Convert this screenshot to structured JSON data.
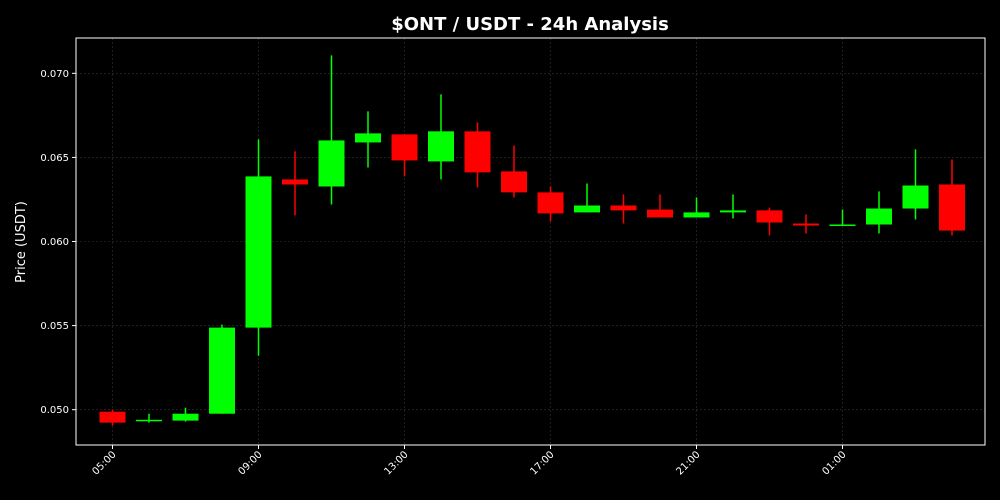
{
  "chart_data": {
    "type": "candlestick",
    "title": "$ONT / USDT - 24h Analysis",
    "ylabel": "Price (USDT)",
    "categories": [
      "05:00",
      null,
      null,
      null,
      "09:00",
      null,
      null,
      null,
      "13:00",
      null,
      null,
      null,
      "17:00",
      null,
      null,
      null,
      "21:00",
      null,
      null,
      null,
      "01:00",
      null,
      null,
      null
    ],
    "open": [
      0.04988,
      0.04935,
      0.04935,
      0.04976,
      0.05488,
      0.06369,
      0.06327,
      0.06589,
      0.06637,
      0.06476,
      0.06655,
      0.06417,
      0.06292,
      0.06173,
      0.06214,
      0.0619,
      0.06143,
      0.06173,
      0.06185,
      0.06107,
      0.06095,
      0.06101,
      0.06196,
      0.06339
    ],
    "high": [
      0.05,
      0.04976,
      0.05012,
      0.05506,
      0.06607,
      0.06536,
      0.07107,
      0.06774,
      0.06637,
      0.06875,
      0.06708,
      0.06571,
      0.06327,
      0.06345,
      0.0628,
      0.0628,
      0.06262,
      0.0628,
      0.06202,
      0.06161,
      0.0619,
      0.06298,
      0.06548,
      0.06488
    ],
    "low": [
      0.04905,
      0.04923,
      0.04929,
      0.04976,
      0.05321,
      0.06155,
      0.0622,
      0.0644,
      0.06387,
      0.06369,
      0.06321,
      0.06262,
      0.06119,
      0.06173,
      0.06107,
      0.06143,
      0.06143,
      0.06137,
      0.06036,
      0.06048,
      0.06095,
      0.06048,
      0.06131,
      0.06036
    ],
    "close": [
      0.04923,
      0.0494,
      0.04976,
      0.05488,
      0.06387,
      0.06339,
      0.06601,
      0.06643,
      0.06482,
      0.06655,
      0.06411,
      0.06292,
      0.06167,
      0.06214,
      0.06185,
      0.06143,
      0.06173,
      0.06185,
      0.06113,
      0.06095,
      0.06101,
      0.06196,
      0.06333,
      0.06065
    ],
    "up_color": "#00ff00",
    "down_color": "#ff0000",
    "ylim": [
      0.0479,
      0.0721
    ],
    "yticks": [
      {
        "value": 0.05,
        "label": "0.050"
      },
      0.055,
      {
        "value": 0.06,
        "label": "0.060"
      },
      0.065,
      {
        "value": 0.07,
        "label": "0.070"
      }
    ],
    "grid": true
  }
}
